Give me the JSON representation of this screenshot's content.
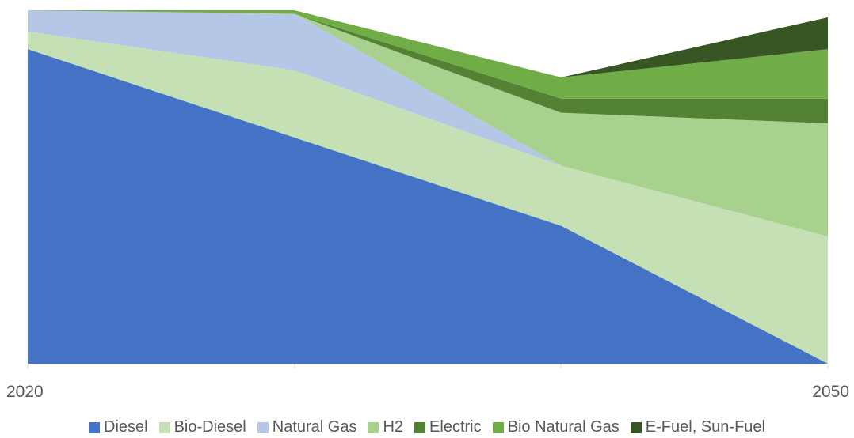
{
  "chart_data": {
    "type": "area",
    "stacked": true,
    "x": [
      2020,
      2030,
      2040,
      2050
    ],
    "x_tick_labels": [
      "2020",
      "",
      "",
      "2050"
    ],
    "ylim": [
      0,
      100
    ],
    "grid": false,
    "legend_position": "bottom",
    "series": [
      {
        "name": "Diesel",
        "color": "#4472C4",
        "values": [
          89,
          64,
          39,
          0
        ]
      },
      {
        "name": "Bio-Diesel",
        "color": "#C5E0B4",
        "values": [
          5,
          19,
          17,
          36
        ]
      },
      {
        "name": "Natural Gas",
        "color": "#B4C7E7",
        "values": [
          6,
          16,
          0,
          0
        ]
      },
      {
        "name": "H2",
        "color": "#A9D18E",
        "values": [
          0,
          0,
          15,
          32
        ]
      },
      {
        "name": "Electric",
        "color": "#548235",
        "values": [
          0,
          0,
          4,
          7
        ]
      },
      {
        "name": "Bio Natural Gas",
        "color": "#70AD47",
        "values": [
          0,
          1,
          6,
          14
        ]
      },
      {
        "name": "E-Fuel, Sun-Fuel",
        "color": "#375623",
        "values": [
          0,
          0,
          0,
          9
        ]
      }
    ]
  }
}
